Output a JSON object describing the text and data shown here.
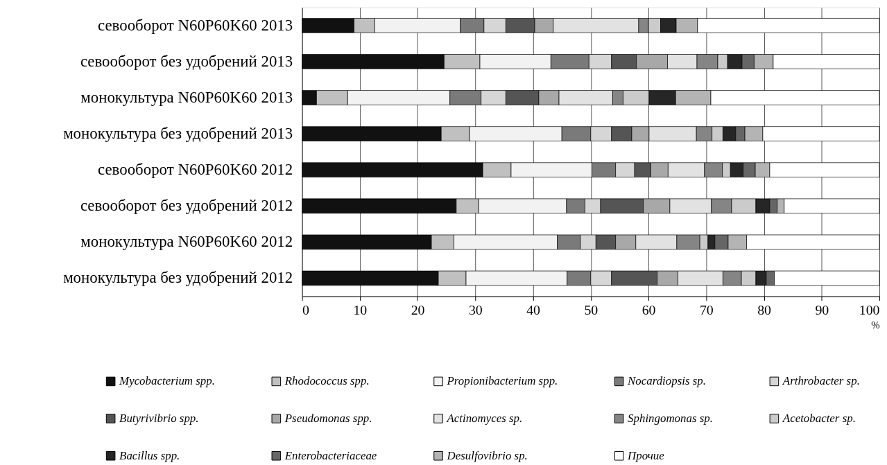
{
  "chart_data": {
    "type": "bar",
    "orientation": "horizontal",
    "stacked": true,
    "categories": [
      "севооборот N60P60K60 2013",
      "севооборот без удобрений 2013",
      "монокультура N60P60K60 2013",
      "монокультура без удобрений 2013",
      "севооборот N60P60K60 2012",
      "севооборот без удобрений 2012",
      "монокультура N60P60K60 2012",
      "монокультура без удобрений 2012"
    ],
    "series": [
      {
        "name": "Mycobacterium spp.",
        "color": "#111111",
        "values": [
          9.0,
          24.6,
          2.5,
          24.1,
          31.3,
          26.7,
          22.4,
          23.6
        ]
      },
      {
        "name": "Rhodococcus spp.",
        "color": "#c0c0c0",
        "values": [
          3.6,
          6.2,
          5.4,
          4.9,
          4.9,
          3.9,
          3.9,
          4.8
        ]
      },
      {
        "name": "Propionibacterium spp.",
        "color": "#f2f2f2",
        "values": [
          14.8,
          12.3,
          17.7,
          16.0,
          14.0,
          15.2,
          17.9,
          17.5
        ]
      },
      {
        "name": "Nocardiopsis sp.",
        "color": "#7a7a7a",
        "values": [
          4.1,
          6.6,
          5.4,
          5.0,
          4.1,
          3.2,
          4.0,
          4.1
        ]
      },
      {
        "name": "Arthrobacter sp.",
        "color": "#d6d6d6",
        "values": [
          3.8,
          3.9,
          4.3,
          3.6,
          3.3,
          2.7,
          2.7,
          3.6
        ]
      },
      {
        "name": "Butyrivibrio spp.",
        "color": "#555555",
        "values": [
          5.0,
          4.3,
          5.7,
          3.5,
          2.8,
          7.4,
          3.4,
          7.9
        ]
      },
      {
        "name": "Pseudomonas spp.",
        "color": "#a8a8a8",
        "values": [
          3.2,
          5.4,
          3.5,
          3.0,
          3.0,
          4.6,
          3.5,
          3.6
        ]
      },
      {
        "name": "Actinomyces sp.",
        "color": "#e2e2e2",
        "values": [
          14.8,
          5.1,
          9.3,
          8.2,
          6.3,
          7.2,
          7.1,
          7.8
        ]
      },
      {
        "name": "Sphingomonas sp.",
        "color": "#858585",
        "values": [
          1.7,
          3.6,
          1.8,
          2.7,
          3.1,
          3.5,
          4.0,
          3.2
        ]
      },
      {
        "name": "Acetobacter sp.",
        "color": "#cbcbcb",
        "values": [
          2.1,
          1.7,
          4.5,
          1.9,
          1.4,
          4.2,
          1.4,
          2.5
        ]
      },
      {
        "name": "Bacillus spp.",
        "color": "#262626",
        "values": [
          2.7,
          2.5,
          4.6,
          2.2,
          2.2,
          2.4,
          1.2,
          1.8
        ]
      },
      {
        "name": "Enterobacteriaceae",
        "color": "#666666",
        "values": [
          null,
          2.1,
          null,
          1.6,
          2.1,
          1.3,
          2.3,
          1.4
        ]
      },
      {
        "name": "Desulfovibrio sp.",
        "color": "#b4b4b4",
        "values": [
          3.7,
          3.3,
          6.1,
          3.1,
          2.5,
          1.2,
          3.2,
          null
        ]
      },
      {
        "name": "Прочие",
        "color": "#ffffff",
        "values": [
          31.5,
          18.4,
          29.2,
          20.2,
          19.0,
          16.5,
          23.0,
          18.2
        ]
      }
    ],
    "xlabel": "%",
    "xlim": [
      0,
      100
    ],
    "xticks": [
      0,
      10,
      20,
      30,
      40,
      50,
      60,
      70,
      80,
      90,
      100
    ],
    "grid": "x",
    "legend": "bottom"
  }
}
